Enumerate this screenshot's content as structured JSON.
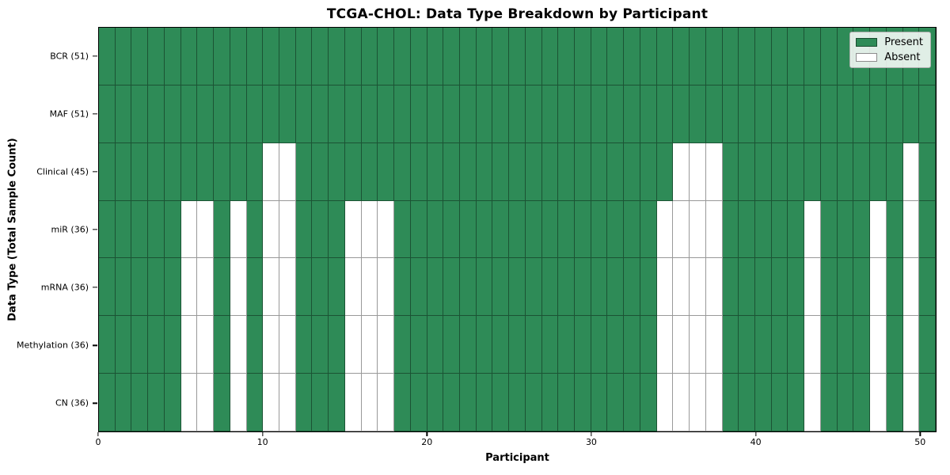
{
  "title": "TCGA-CHOL: Data Type Breakdown by Participant",
  "axes": {
    "x_label": "Participant",
    "y_label": "Data Type (Total Sample Count)",
    "x_ticks": [
      0,
      10,
      20,
      30,
      40,
      50
    ],
    "x_range": [
      0,
      51
    ]
  },
  "legend": {
    "items": [
      {
        "label": "Present",
        "color": "#2e8b57"
      },
      {
        "label": "Absent",
        "color": "#ffffff"
      }
    ]
  },
  "colors": {
    "present": "#2e8b57",
    "absent": "#ffffff",
    "cell_border": "rgba(0,0,0,0.40)",
    "frame": "#000000"
  },
  "chart_data": {
    "type": "heatmap",
    "title": "TCGA-CHOL: Data Type Breakdown by Participant",
    "xlabel": "Participant",
    "ylabel": "Data Type (Total Sample Count)",
    "n_participants": 51,
    "value_meaning": {
      "present": 1,
      "absent": 0
    },
    "rows": [
      {
        "label": "BCR (51)",
        "data_type": "BCR",
        "total_samples": 51,
        "absent_participants": []
      },
      {
        "label": "MAF (51)",
        "data_type": "MAF",
        "total_samples": 51,
        "absent_participants": []
      },
      {
        "label": "Clinical (45)",
        "data_type": "Clinical",
        "total_samples": 45,
        "absent_participants": [
          10,
          11,
          35,
          36,
          37,
          49
        ]
      },
      {
        "label": "miR (36)",
        "data_type": "miR",
        "total_samples": 36,
        "absent_participants": [
          5,
          6,
          8,
          10,
          11,
          15,
          16,
          17,
          34,
          35,
          36,
          37,
          43,
          47,
          49
        ]
      },
      {
        "label": "mRNA (36)",
        "data_type": "mRNA",
        "total_samples": 36,
        "absent_participants": [
          5,
          6,
          8,
          10,
          11,
          15,
          16,
          17,
          34,
          35,
          36,
          37,
          43,
          47,
          49
        ]
      },
      {
        "label": "Methylation (36)",
        "data_type": "Methylation",
        "total_samples": 36,
        "absent_participants": [
          5,
          6,
          8,
          10,
          11,
          15,
          16,
          17,
          34,
          35,
          36,
          37,
          43,
          47,
          49
        ]
      },
      {
        "label": "CN (36)",
        "data_type": "CN",
        "total_samples": 36,
        "absent_participants": [
          5,
          6,
          8,
          10,
          11,
          15,
          16,
          17,
          34,
          35,
          36,
          37,
          43,
          47,
          49
        ]
      }
    ]
  }
}
